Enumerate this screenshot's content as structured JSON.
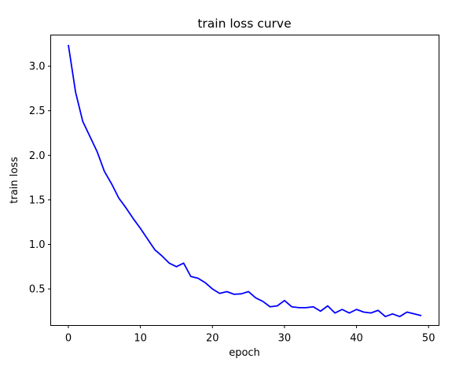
{
  "chart_data": {
    "type": "line",
    "title": "train loss curve",
    "xlabel": "epoch",
    "ylabel": "train loss",
    "xlim": [
      -2.45,
      51.45
    ],
    "ylim": [
      0.09,
      3.35
    ],
    "grid": false,
    "x_ticks": [
      0,
      10,
      20,
      30,
      40,
      50
    ],
    "x_tick_labels": [
      "0",
      "10",
      "20",
      "30",
      "40",
      "50"
    ],
    "y_ticks": [
      0.5,
      1.0,
      1.5,
      2.0,
      2.5,
      3.0
    ],
    "y_tick_labels": [
      "0.5",
      "1.0",
      "1.5",
      "2.0",
      "2.5",
      "3.0"
    ],
    "series": [
      {
        "color": "#0000ff",
        "x": [
          0,
          1,
          2,
          3,
          4,
          5,
          6,
          7,
          8,
          9,
          10,
          11,
          12,
          13,
          14,
          15,
          16,
          17,
          18,
          19,
          20,
          21,
          22,
          23,
          24,
          25,
          26,
          27,
          28,
          29,
          30,
          31,
          32,
          33,
          34,
          35,
          36,
          37,
          38,
          39,
          40,
          41,
          42,
          43,
          44,
          45,
          46,
          47,
          48,
          49
        ],
        "y": [
          3.24,
          2.71,
          2.38,
          2.21,
          2.04,
          1.82,
          1.68,
          1.52,
          1.41,
          1.29,
          1.18,
          1.06,
          0.94,
          0.87,
          0.79,
          0.75,
          0.79,
          0.64,
          0.62,
          0.57,
          0.5,
          0.45,
          0.47,
          0.44,
          0.445,
          0.47,
          0.4,
          0.36,
          0.3,
          0.31,
          0.37,
          0.3,
          0.29,
          0.29,
          0.3,
          0.25,
          0.31,
          0.23,
          0.27,
          0.23,
          0.27,
          0.24,
          0.23,
          0.26,
          0.19,
          0.22,
          0.19,
          0.24,
          0.22,
          0.2
        ]
      }
    ]
  }
}
